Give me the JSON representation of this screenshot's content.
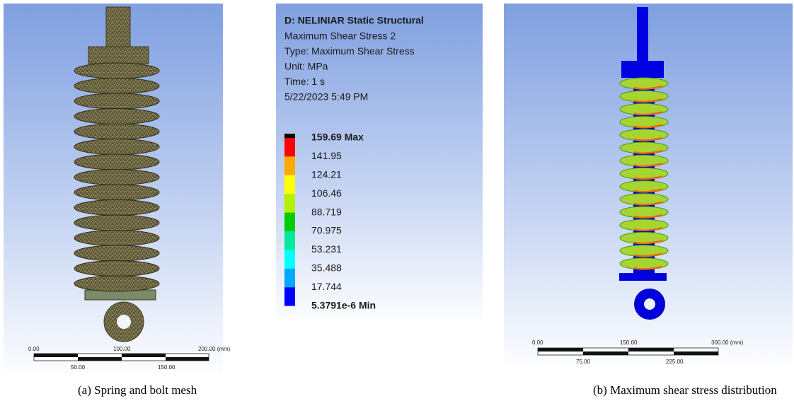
{
  "mesh_panel": {
    "scale_top": [
      "0.00",
      "100.00",
      "200.00 (mm)"
    ],
    "scale_bottom": [
      "50.00",
      "150.00"
    ],
    "caption": "(a) Spring and bolt mesh"
  },
  "legend": {
    "title": "D: NELINIAR Static Structural",
    "lines": [
      "Maximum Shear Stress 2",
      "Type: Maximum Shear Stress",
      "Unit: MPa",
      "Time: 1 s",
      "5/22/2023 5:49 PM"
    ],
    "levels": [
      "159.69 Max",
      "141.95",
      "124.21",
      "106.46",
      "88.719",
      "70.975",
      "53.231",
      "35.488",
      "17.744",
      "5.3791e-6 Min"
    ]
  },
  "stress_panel": {
    "scale_top": [
      "0.00",
      "150.00",
      "300.00 (mm)"
    ],
    "scale_bottom": [
      "75.00",
      "225.00"
    ],
    "caption": "(b) Maximum shear stress distribution"
  }
}
